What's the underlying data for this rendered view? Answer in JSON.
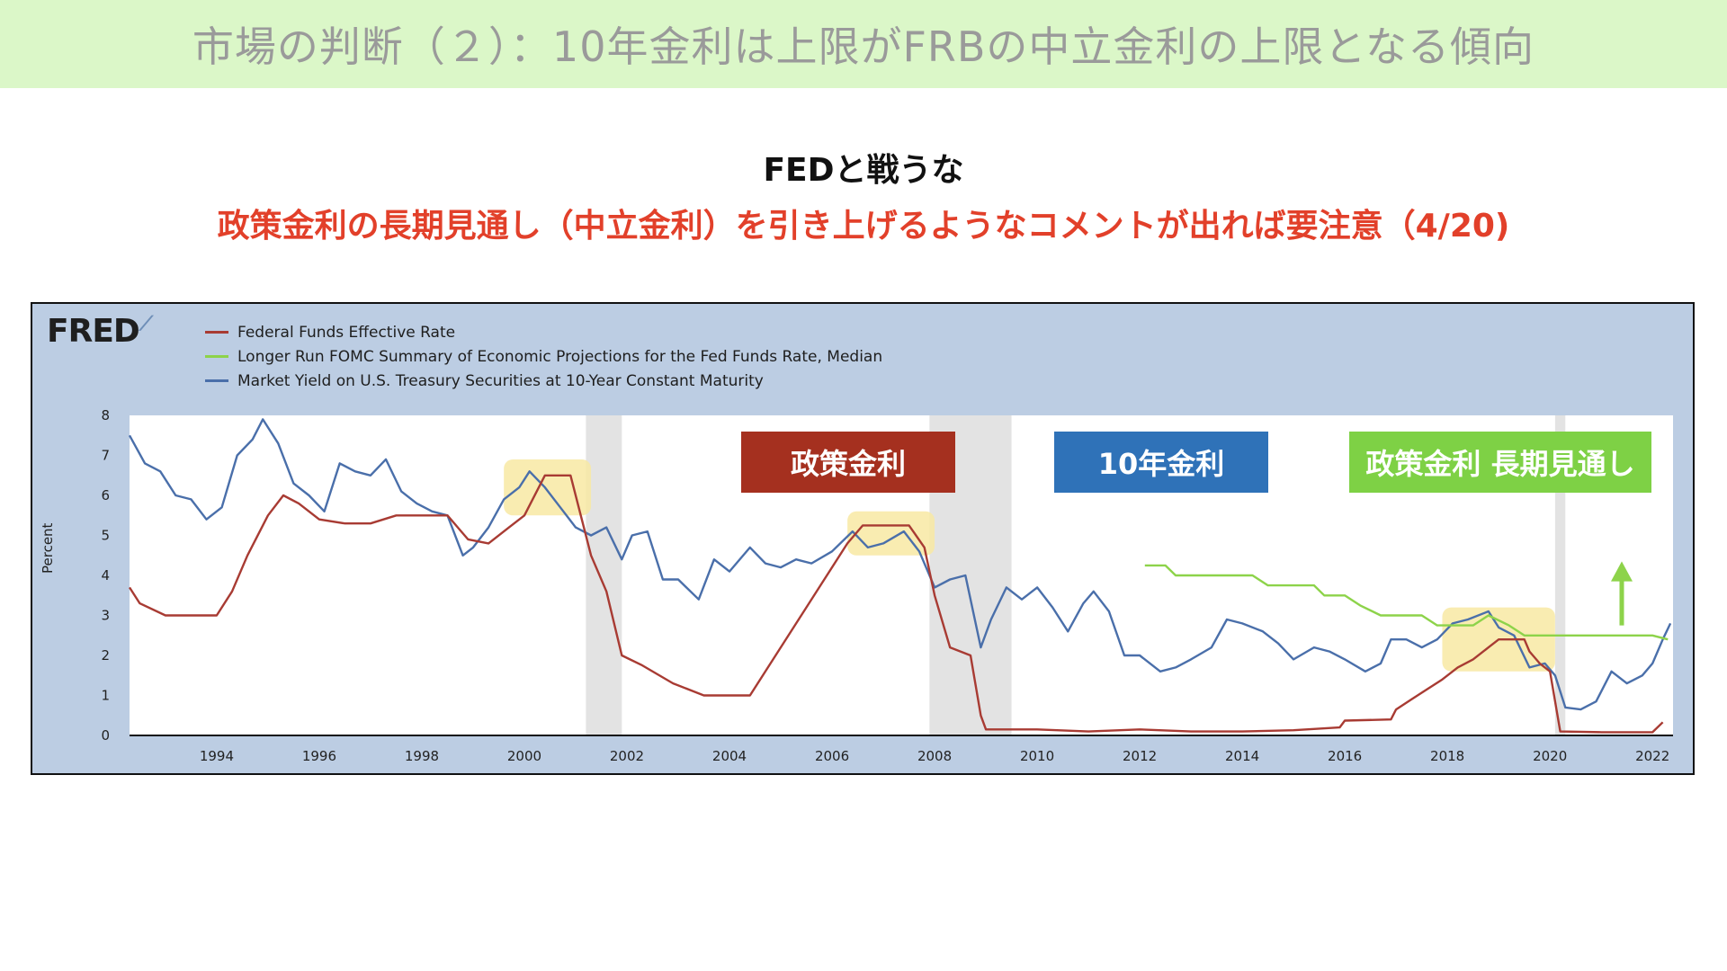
{
  "slide": {
    "title": "市場の判断（２）：10年金利は上限がFRBの中立金利の上限となる傾向",
    "subtitle1": "FEDと戦うな",
    "subtitle2": "政策金利の長期見通し（中立金利）を引き上げるようなコメントが出れば要注意（4/20)"
  },
  "colors": {
    "title_bg": "#dbf7c8",
    "accent_red": "#e2402a",
    "chart_bg": "#bccde3",
    "plot_bg": "#ffffff",
    "recession": "#e3e3e3",
    "highlight": "#f8e9a3",
    "fed_funds": "#a83b33",
    "longer_run": "#8dd34a",
    "ten_year": "#4a6faa"
  },
  "badges": [
    {
      "label": "政策金利",
      "color": "#a5301f"
    },
    {
      "label": "10年金利",
      "color": "#2f72b8"
    },
    {
      "label": "政策金利 長期見通し",
      "color": "#7ed145"
    }
  ],
  "chart_data": {
    "type": "line",
    "source_logo": "FRED",
    "title": "",
    "xlabel": "",
    "ylabel": "Percent",
    "xlim": [
      1992.3,
      2022.4
    ],
    "ylim": [
      0,
      8
    ],
    "x_ticks": [
      "1994",
      "1996",
      "1998",
      "2000",
      "2002",
      "2004",
      "2006",
      "2008",
      "2010",
      "2012",
      "2014",
      "2016",
      "2018",
      "2020",
      "2022"
    ],
    "y_ticks": [
      "0",
      "1",
      "2",
      "3",
      "4",
      "5",
      "6",
      "7",
      "8"
    ],
    "recessions": [
      [
        2001.2,
        2001.9
      ],
      [
        2007.9,
        2009.5
      ],
      [
        2020.1,
        2020.3
      ]
    ],
    "highlights": [
      [
        1999.6,
        2001.3,
        5.5,
        6.9
      ],
      [
        2006.3,
        2008.0,
        4.5,
        5.6
      ],
      [
        2017.9,
        2020.1,
        1.6,
        3.2
      ]
    ],
    "annotation": "up-arrow",
    "series": [
      {
        "name": "Federal Funds Effective Rate",
        "color": "#a83b33",
        "points": [
          [
            1992.3,
            3.7
          ],
          [
            1992.5,
            3.3
          ],
          [
            1993.0,
            3.0
          ],
          [
            1993.5,
            3.0
          ],
          [
            1994.0,
            3.0
          ],
          [
            1994.3,
            3.6
          ],
          [
            1994.6,
            4.5
          ],
          [
            1995.0,
            5.5
          ],
          [
            1995.3,
            6.0
          ],
          [
            1995.6,
            5.8
          ],
          [
            1996.0,
            5.4
          ],
          [
            1996.5,
            5.3
          ],
          [
            1997.0,
            5.3
          ],
          [
            1997.5,
            5.5
          ],
          [
            1998.0,
            5.5
          ],
          [
            1998.5,
            5.5
          ],
          [
            1998.9,
            4.9
          ],
          [
            1999.3,
            4.8
          ],
          [
            1999.7,
            5.2
          ],
          [
            2000.0,
            5.5
          ],
          [
            2000.4,
            6.5
          ],
          [
            2000.9,
            6.5
          ],
          [
            2001.1,
            5.5
          ],
          [
            2001.3,
            4.5
          ],
          [
            2001.6,
            3.6
          ],
          [
            2001.9,
            2.0
          ],
          [
            2002.3,
            1.75
          ],
          [
            2002.9,
            1.3
          ],
          [
            2003.5,
            1.0
          ],
          [
            2004.4,
            1.0
          ],
          [
            2004.8,
            1.8
          ],
          [
            2005.3,
            2.8
          ],
          [
            2005.8,
            3.8
          ],
          [
            2006.3,
            4.8
          ],
          [
            2006.6,
            5.25
          ],
          [
            2007.5,
            5.25
          ],
          [
            2007.8,
            4.7
          ],
          [
            2008.0,
            3.5
          ],
          [
            2008.3,
            2.2
          ],
          [
            2008.7,
            2.0
          ],
          [
            2008.9,
            0.5
          ],
          [
            2009.0,
            0.15
          ],
          [
            2010.0,
            0.15
          ],
          [
            2011.0,
            0.1
          ],
          [
            2012.0,
            0.15
          ],
          [
            2013.0,
            0.1
          ],
          [
            2014.0,
            0.1
          ],
          [
            2015.0,
            0.13
          ],
          [
            2015.9,
            0.2
          ],
          [
            2016.0,
            0.37
          ],
          [
            2016.9,
            0.4
          ],
          [
            2017.0,
            0.65
          ],
          [
            2017.3,
            0.9
          ],
          [
            2017.6,
            1.15
          ],
          [
            2017.9,
            1.4
          ],
          [
            2018.2,
            1.7
          ],
          [
            2018.5,
            1.9
          ],
          [
            2018.8,
            2.2
          ],
          [
            2019.0,
            2.4
          ],
          [
            2019.5,
            2.4
          ],
          [
            2019.6,
            2.1
          ],
          [
            2019.8,
            1.8
          ],
          [
            2020.0,
            1.6
          ],
          [
            2020.2,
            0.1
          ],
          [
            2021.0,
            0.08
          ],
          [
            2022.0,
            0.08
          ],
          [
            2022.2,
            0.33
          ]
        ]
      },
      {
        "name": "Longer Run FOMC Summary of Economic Projections for the Fed Funds Rate, Median",
        "color": "#8dd34a",
        "points": [
          [
            2012.1,
            4.25
          ],
          [
            2012.5,
            4.25
          ],
          [
            2012.7,
            4.0
          ],
          [
            2013.3,
            4.0
          ],
          [
            2014.2,
            4.0
          ],
          [
            2014.5,
            3.75
          ],
          [
            2015.4,
            3.75
          ],
          [
            2015.6,
            3.5
          ],
          [
            2016.0,
            3.5
          ],
          [
            2016.3,
            3.25
          ],
          [
            2016.7,
            3.0
          ],
          [
            2017.0,
            3.0
          ],
          [
            2017.5,
            3.0
          ],
          [
            2017.8,
            2.75
          ],
          [
            2018.5,
            2.75
          ],
          [
            2018.8,
            3.0
          ],
          [
            2019.2,
            2.75
          ],
          [
            2019.5,
            2.5
          ],
          [
            2022.0,
            2.5
          ],
          [
            2022.3,
            2.4
          ]
        ]
      },
      {
        "name": "Market Yield on U.S. Treasury Securities at 10-Year Constant Maturity",
        "color": "#4a6faa",
        "points": [
          [
            1992.3,
            7.5
          ],
          [
            1992.6,
            6.8
          ],
          [
            1992.9,
            6.6
          ],
          [
            1993.2,
            6.0
          ],
          [
            1993.5,
            5.9
          ],
          [
            1993.8,
            5.4
          ],
          [
            1994.1,
            5.7
          ],
          [
            1994.4,
            7.0
          ],
          [
            1994.7,
            7.4
          ],
          [
            1994.9,
            7.9
          ],
          [
            1995.2,
            7.3
          ],
          [
            1995.5,
            6.3
          ],
          [
            1995.8,
            6.0
          ],
          [
            1996.1,
            5.6
          ],
          [
            1996.4,
            6.8
          ],
          [
            1996.7,
            6.6
          ],
          [
            1997.0,
            6.5
          ],
          [
            1997.3,
            6.9
          ],
          [
            1997.6,
            6.1
          ],
          [
            1997.9,
            5.8
          ],
          [
            1998.2,
            5.6
          ],
          [
            1998.5,
            5.5
          ],
          [
            1998.8,
            4.5
          ],
          [
            1999.0,
            4.7
          ],
          [
            1999.3,
            5.2
          ],
          [
            1999.6,
            5.9
          ],
          [
            1999.9,
            6.2
          ],
          [
            2000.1,
            6.6
          ],
          [
            2000.4,
            6.2
          ],
          [
            2000.7,
            5.7
          ],
          [
            2001.0,
            5.2
          ],
          [
            2001.3,
            5.0
          ],
          [
            2001.6,
            5.2
          ],
          [
            2001.9,
            4.4
          ],
          [
            2002.1,
            5.0
          ],
          [
            2002.4,
            5.1
          ],
          [
            2002.7,
            3.9
          ],
          [
            2003.0,
            3.9
          ],
          [
            2003.4,
            3.4
          ],
          [
            2003.7,
            4.4
          ],
          [
            2004.0,
            4.1
          ],
          [
            2004.4,
            4.7
          ],
          [
            2004.7,
            4.3
          ],
          [
            2005.0,
            4.2
          ],
          [
            2005.3,
            4.4
          ],
          [
            2005.6,
            4.3
          ],
          [
            2006.0,
            4.6
          ],
          [
            2006.4,
            5.1
          ],
          [
            2006.7,
            4.7
          ],
          [
            2007.0,
            4.8
          ],
          [
            2007.4,
            5.1
          ],
          [
            2007.7,
            4.6
          ],
          [
            2008.0,
            3.7
          ],
          [
            2008.3,
            3.9
          ],
          [
            2008.6,
            4.0
          ],
          [
            2008.9,
            2.2
          ],
          [
            2009.1,
            2.9
          ],
          [
            2009.4,
            3.7
          ],
          [
            2009.7,
            3.4
          ],
          [
            2010.0,
            3.7
          ],
          [
            2010.3,
            3.2
          ],
          [
            2010.6,
            2.6
          ],
          [
            2010.9,
            3.3
          ],
          [
            2011.1,
            3.6
          ],
          [
            2011.4,
            3.1
          ],
          [
            2011.7,
            2.0
          ],
          [
            2012.0,
            2.0
          ],
          [
            2012.4,
            1.6
          ],
          [
            2012.7,
            1.7
          ],
          [
            2013.0,
            1.9
          ],
          [
            2013.4,
            2.2
          ],
          [
            2013.7,
            2.9
          ],
          [
            2014.0,
            2.8
          ],
          [
            2014.4,
            2.6
          ],
          [
            2014.7,
            2.3
          ],
          [
            2015.0,
            1.9
          ],
          [
            2015.4,
            2.2
          ],
          [
            2015.7,
            2.1
          ],
          [
            2016.0,
            1.9
          ],
          [
            2016.4,
            1.6
          ],
          [
            2016.7,
            1.8
          ],
          [
            2016.9,
            2.4
          ],
          [
            2017.2,
            2.4
          ],
          [
            2017.5,
            2.2
          ],
          [
            2017.8,
            2.4
          ],
          [
            2018.1,
            2.8
          ],
          [
            2018.4,
            2.9
          ],
          [
            2018.8,
            3.1
          ],
          [
            2019.0,
            2.7
          ],
          [
            2019.3,
            2.5
          ],
          [
            2019.6,
            1.7
          ],
          [
            2019.9,
            1.8
          ],
          [
            2020.1,
            1.5
          ],
          [
            2020.3,
            0.7
          ],
          [
            2020.6,
            0.65
          ],
          [
            2020.9,
            0.85
          ],
          [
            2021.2,
            1.6
          ],
          [
            2021.5,
            1.3
          ],
          [
            2021.8,
            1.5
          ],
          [
            2022.0,
            1.8
          ],
          [
            2022.2,
            2.4
          ],
          [
            2022.35,
            2.8
          ]
        ]
      }
    ]
  }
}
